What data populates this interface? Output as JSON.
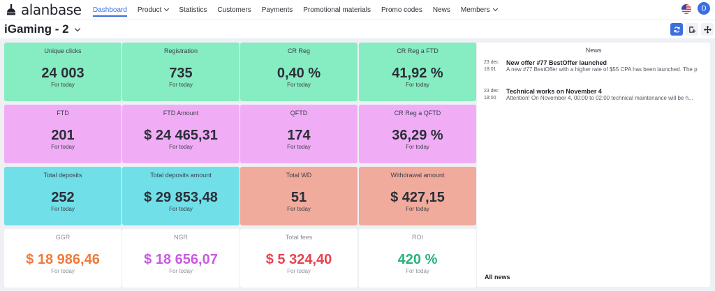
{
  "app": {
    "brand": "alanbase"
  },
  "nav": [
    {
      "label": "Dashboard",
      "active": true,
      "dropdown": false
    },
    {
      "label": "Product",
      "active": false,
      "dropdown": true
    },
    {
      "label": "Statistics",
      "active": false,
      "dropdown": false
    },
    {
      "label": "Customers",
      "active": false,
      "dropdown": false
    },
    {
      "label": "Payments",
      "active": false,
      "dropdown": false
    },
    {
      "label": "Promotional materials",
      "active": false,
      "dropdown": false
    },
    {
      "label": "Promo codes",
      "active": false,
      "dropdown": false
    },
    {
      "label": "News",
      "active": false,
      "dropdown": false
    },
    {
      "label": "Members",
      "active": false,
      "dropdown": true
    }
  ],
  "header": {
    "flag_icon": "us-flag-icon",
    "avatar_initial": "D"
  },
  "dashboard": {
    "title": "iGaming - 2",
    "tools": [
      {
        "icon": "refresh-icon"
      },
      {
        "icon": "add-widget-icon"
      },
      {
        "icon": "move-icon"
      }
    ]
  },
  "colors": {
    "accent": "#3b6fe0",
    "green": "#86ecc1",
    "pink": "#f0adf6",
    "cyan": "#70dfe8",
    "salmon": "#f0ab9c",
    "ggr": "#f07a3a",
    "ngr": "#c95ae0",
    "fees": "#e8434f",
    "roi": "#27b47c"
  },
  "cards": [
    {
      "title": "Unique clicks",
      "value": "24 003",
      "sub": "For today",
      "color": "green"
    },
    {
      "title": "Registration",
      "value": "735",
      "sub": "For today",
      "color": "green"
    },
    {
      "title": "CR Reg",
      "value": "0,40 %",
      "sub": "For today",
      "color": "green"
    },
    {
      "title": "CR Reg a FTD",
      "value": "41,92 %",
      "sub": "For today",
      "color": "green"
    },
    {
      "title": "FTD",
      "value": "201",
      "sub": "For today",
      "color": "pink"
    },
    {
      "title": "FTD Amount",
      "value": "$ 24 465,31",
      "sub": "For today",
      "color": "pink"
    },
    {
      "title": "QFTD",
      "value": "174",
      "sub": "For today",
      "color": "pink"
    },
    {
      "title": "CR Reg a QFTD",
      "value": "36,29 %",
      "sub": "For today",
      "color": "pink"
    },
    {
      "title": "Total deposits",
      "value": "252",
      "sub": "For today",
      "color": "cyan"
    },
    {
      "title": "Total deposits amount",
      "value": "$ 29 853,48",
      "sub": "For today",
      "color": "cyan"
    },
    {
      "title": "Total WD",
      "value": "51",
      "sub": "For today",
      "color": "salmon"
    },
    {
      "title": "Withdrawal amount",
      "value": "$ 427,15",
      "sub": "For today",
      "color": "salmon"
    },
    {
      "title": "GGR",
      "value": "$ 18 986,46",
      "sub": "For today",
      "color": "white",
      "value_color": "ggr"
    },
    {
      "title": "NGR",
      "value": "$ 18 656,07",
      "sub": "For today",
      "color": "white",
      "value_color": "ngr"
    },
    {
      "title": "Total fees",
      "value": "$ 5 324,40",
      "sub": "For today",
      "color": "white",
      "value_color": "fees"
    },
    {
      "title": "ROI",
      "value": "420 %",
      "sub": "For today",
      "color": "white",
      "value_color": "roi"
    }
  ],
  "news": {
    "title": "News",
    "items": [
      {
        "date": "23 dec",
        "time": "18:01",
        "headline": "New offer #77 BestOffer launched",
        "text": "A new #77 BestOffer with a higher rate of $55 CPA has been launched. The p"
      },
      {
        "date": "23 dec",
        "time": "18:00",
        "headline": "Technical works on November 4",
        "text": "Attention! On November 4, 00:00 to 02:00 technical maintenance will be h..."
      }
    ],
    "all_label": "All news"
  }
}
